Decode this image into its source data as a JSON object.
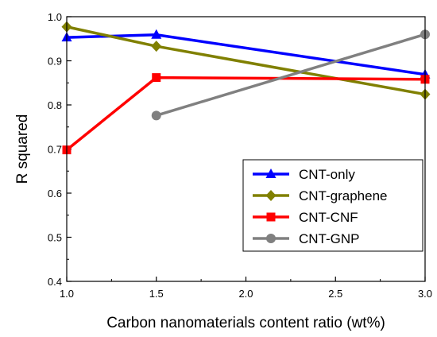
{
  "chart_data": {
    "type": "line",
    "xlabel": "Carbon nanomaterials content ratio (wt%)",
    "ylabel": "R squared",
    "xlim": [
      1.0,
      3.0
    ],
    "ylim": [
      0.4,
      1.0
    ],
    "xticks": [
      "1.0",
      "1.5",
      "2.0",
      "2.5",
      "3.0"
    ],
    "yticks": [
      "0.4",
      "0.5",
      "0.6",
      "0.7",
      "0.8",
      "0.9",
      "1.0"
    ],
    "grid": false,
    "legend_position": "bottom-right",
    "series": [
      {
        "name": "CNT-only",
        "color": "#0000FF",
        "marker": "triangle",
        "x": [
          1.0,
          1.5,
          3.0
        ],
        "y": [
          0.953,
          0.959,
          0.869
        ]
      },
      {
        "name": "CNT-graphene",
        "color": "#808000",
        "marker": "diamond",
        "x": [
          1.0,
          1.5,
          3.0
        ],
        "y": [
          0.977,
          0.933,
          0.824
        ]
      },
      {
        "name": "CNT-CNF",
        "color": "#FF0000",
        "marker": "square",
        "x": [
          1.0,
          1.5,
          3.0
        ],
        "y": [
          0.698,
          0.862,
          0.858
        ]
      },
      {
        "name": "CNT-GNP",
        "color": "#808080",
        "marker": "circle",
        "x": [
          1.5,
          3.0
        ],
        "y": [
          0.776,
          0.96
        ]
      }
    ]
  }
}
